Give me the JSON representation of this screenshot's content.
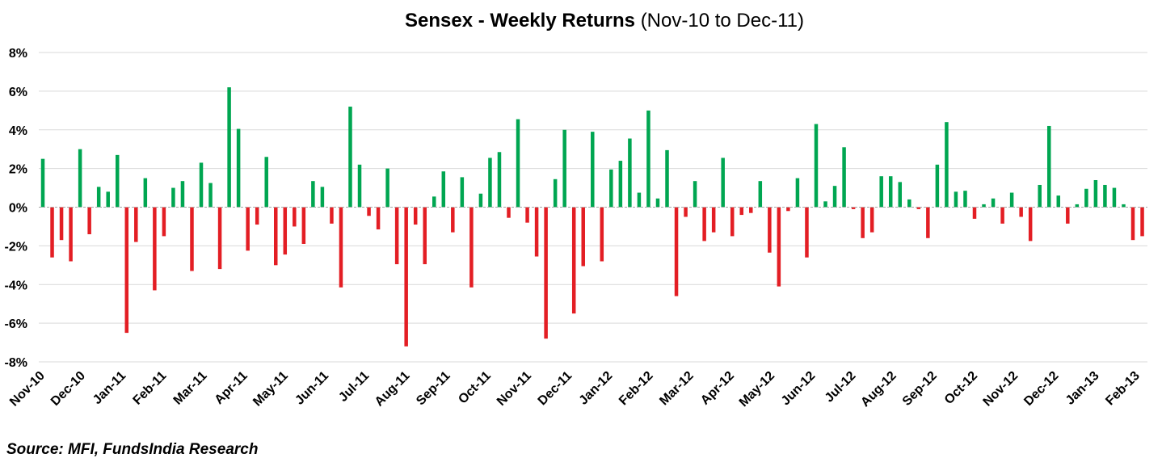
{
  "chart_data": {
    "type": "bar",
    "title": "Sensex - Weekly Returns",
    "subtitle": "(Nov-10 to Dec-11)",
    "source": "Source: MFI, FundsIndia Research",
    "ylim": [
      -8,
      8
    ],
    "y_ticks": [
      "8%",
      "6%",
      "4%",
      "2%",
      "0%",
      "-2%",
      "-4%",
      "-6%",
      "-8%"
    ],
    "y_tick_values": [
      8,
      6,
      4,
      2,
      0,
      -2,
      -4,
      -6,
      -8
    ],
    "x_tick_labels": [
      "Nov-10",
      "Dec-10",
      "Jan-11",
      "Feb-11",
      "Mar-11",
      "Apr-11",
      "May-11",
      "Jun-11",
      "Jul-11",
      "Aug-11",
      "Sep-11",
      "Oct-11",
      "Nov-11",
      "Dec-11",
      "Jan-12",
      "Feb-12",
      "Mar-12",
      "Apr-12",
      "May-12",
      "Jun-12",
      "Jul-12",
      "Aug-12",
      "Sep-12",
      "Oct-12",
      "Nov-12",
      "Dec-12",
      "Jan-13",
      "Feb-13"
    ],
    "grid": true,
    "colors": {
      "positive": "#00A651",
      "negative": "#E31E24",
      "grid": "#D9D9D9",
      "zero_line": "#A6A6A6"
    },
    "values": [
      2.5,
      -2.6,
      -1.7,
      -2.8,
      3.0,
      -1.4,
      1.05,
      0.8,
      2.7,
      -6.5,
      -1.8,
      1.5,
      -4.3,
      -1.5,
      1.0,
      1.35,
      -3.3,
      2.3,
      1.25,
      -3.2,
      6.2,
      4.05,
      -2.25,
      -0.9,
      2.6,
      -3.0,
      -2.45,
      -1.0,
      -1.9,
      1.35,
      1.05,
      -0.85,
      -4.15,
      5.2,
      2.2,
      -0.45,
      -1.15,
      2.0,
      -2.95,
      -7.2,
      -0.9,
      -2.95,
      0.55,
      1.85,
      -1.3,
      1.55,
      -4.15,
      0.7,
      2.55,
      2.85,
      -0.55,
      4.55,
      -0.8,
      -2.55,
      -6.8,
      1.45,
      4.0,
      -5.5,
      -3.05,
      3.9,
      -2.8,
      1.95,
      2.4,
      3.55,
      0.75,
      5.0,
      0.45,
      2.95,
      -4.6,
      -0.5,
      1.35,
      -1.75,
      -1.3,
      2.55,
      -1.5,
      -0.4,
      -0.3,
      1.35,
      -2.35,
      -4.1,
      -0.2,
      1.5,
      -2.6,
      4.3,
      0.3,
      1.1,
      3.1,
      -0.1,
      -1.6,
      -1.3,
      1.6,
      1.6,
      1.3,
      0.4,
      -0.1,
      -1.6,
      2.2,
      4.4,
      0.8,
      0.85,
      -0.6,
      0.15,
      0.45,
      -0.85,
      0.75,
      -0.5,
      -1.75,
      1.15,
      4.2,
      0.6,
      -0.85,
      0.15,
      0.95,
      1.4,
      1.15,
      1.0,
      0.15,
      -1.7,
      -1.5
    ]
  }
}
